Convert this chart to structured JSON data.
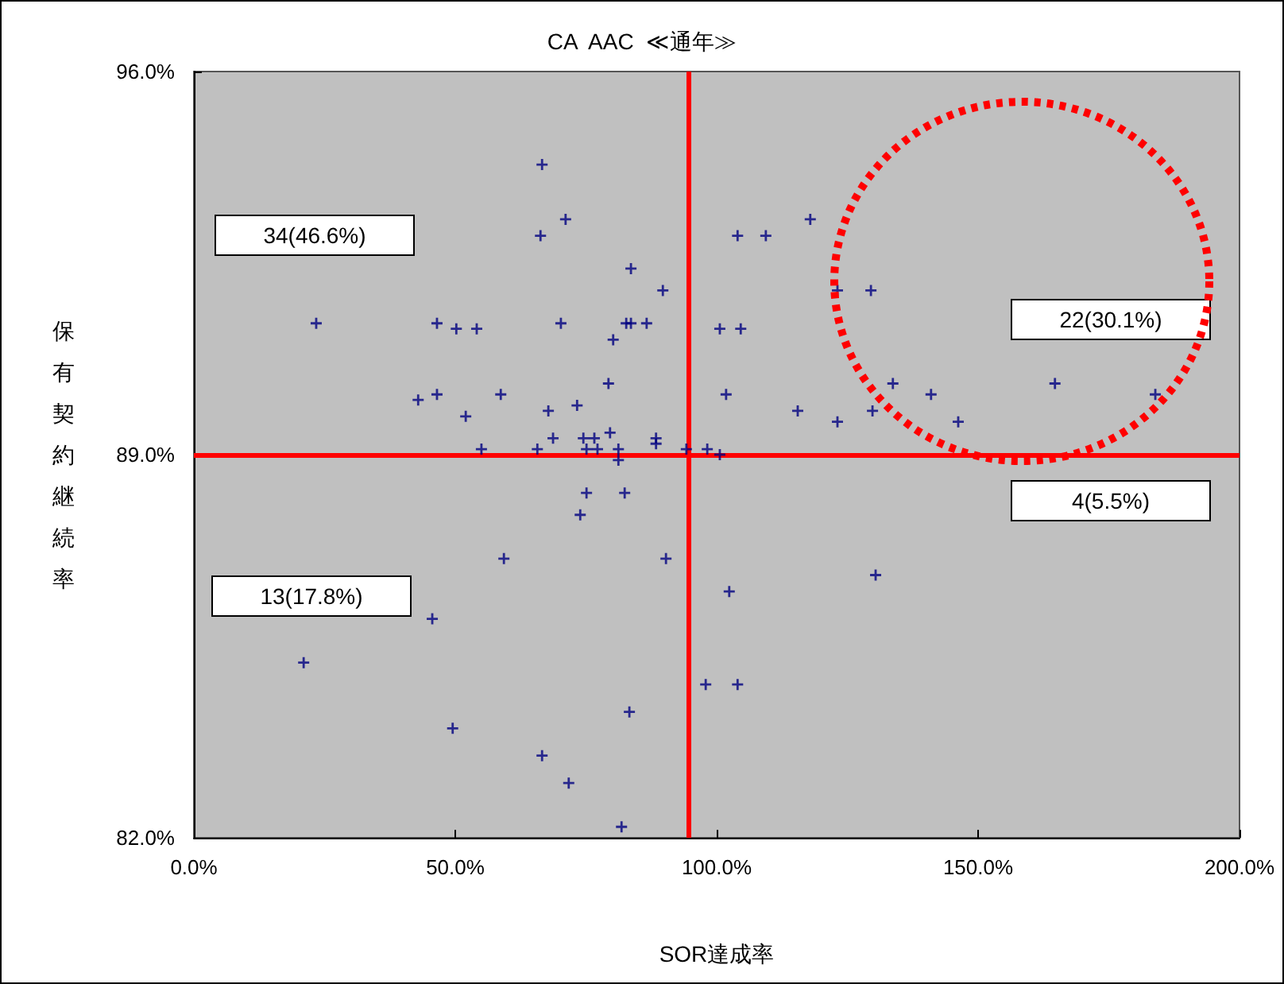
{
  "chart_data": {
    "type": "scatter",
    "title": "CA  AAC  ≪通年≫",
    "xlabel": "SOR達成率",
    "ylabel": "保有契約継続率",
    "xlim": [
      0,
      200
    ],
    "xticks": [
      {
        "value": 0,
        "label": "0.0%"
      },
      {
        "value": 50,
        "label": "50.0%"
      },
      {
        "value": 100,
        "label": "100.0%"
      },
      {
        "value": 150,
        "label": "150.0%"
      },
      {
        "value": 200,
        "label": "200.0%"
      }
    ],
    "ylim": [
      82,
      96
    ],
    "yticks": [
      {
        "value": 82,
        "label": "82.0%"
      },
      {
        "value": 89,
        "label": "89.0%"
      },
      {
        "value": 96,
        "label": "96.0%"
      }
    ],
    "grid": false,
    "marker": "cross",
    "series": [
      {
        "color": "#000080",
        "x": [
          66.6,
          71.1,
          66.3,
          83.6,
          89.7,
          23.4,
          46.5,
          50.2,
          54.1,
          70.2,
          83.6,
          82.7,
          86.6,
          80.2,
          79.3,
          42.9,
          46.5,
          52.0,
          58.7,
          67.8,
          73.3,
          55.0,
          65.7,
          68.7,
          74.5,
          75.1,
          76.6,
          77.2,
          79.6,
          81.2,
          88.4,
          88.4,
          94.2,
          98.2,
          100.6,
          117.9,
          104.0,
          109.4,
          123.1,
          129.5,
          100.6,
          104.6,
          101.8,
          133.7,
          141.0,
          164.7,
          183.9,
          115.5,
          123.1,
          129.8,
          146.2,
          75.1,
          82.4,
          73.9,
          59.3,
          90.3,
          45.6,
          21.0,
          83.3,
          49.5,
          66.6,
          71.7,
          81.8,
          81.2,
          102.4,
          130.4,
          97.9,
          104.0
        ],
        "values": [
          94.3,
          93.3,
          93.0,
          92.4,
          92.0,
          91.4,
          91.4,
          91.3,
          91.3,
          91.4,
          91.4,
          91.4,
          91.4,
          91.1,
          90.3,
          90.0,
          90.1,
          89.7,
          90.1,
          89.8,
          89.9,
          89.1,
          89.1,
          89.3,
          89.3,
          89.1,
          89.3,
          89.1,
          89.4,
          89.1,
          89.3,
          89.2,
          89.1,
          89.1,
          89.0,
          93.3,
          93.0,
          93.0,
          92.0,
          92.0,
          91.3,
          91.3,
          90.1,
          90.3,
          90.1,
          90.3,
          90.1,
          89.8,
          89.6,
          89.8,
          89.6,
          88.3,
          88.3,
          87.9,
          87.1,
          87.1,
          86.0,
          85.2,
          84.3,
          84.0,
          83.5,
          83.0,
          82.2,
          88.9,
          86.5,
          86.8,
          84.8,
          84.8
        ]
      }
    ],
    "ref_lines": [
      {
        "axis": "x",
        "value": 94.5,
        "color": "#ff0000",
        "line_style": "solid"
      },
      {
        "axis": "y",
        "value": 89,
        "color": "#ff0000",
        "line_style": "solid"
      }
    ],
    "annotations": [
      "34(46.6%)",
      "22(30.1%)",
      "13(17.8%)",
      "4(5.5%)"
    ]
  }
}
